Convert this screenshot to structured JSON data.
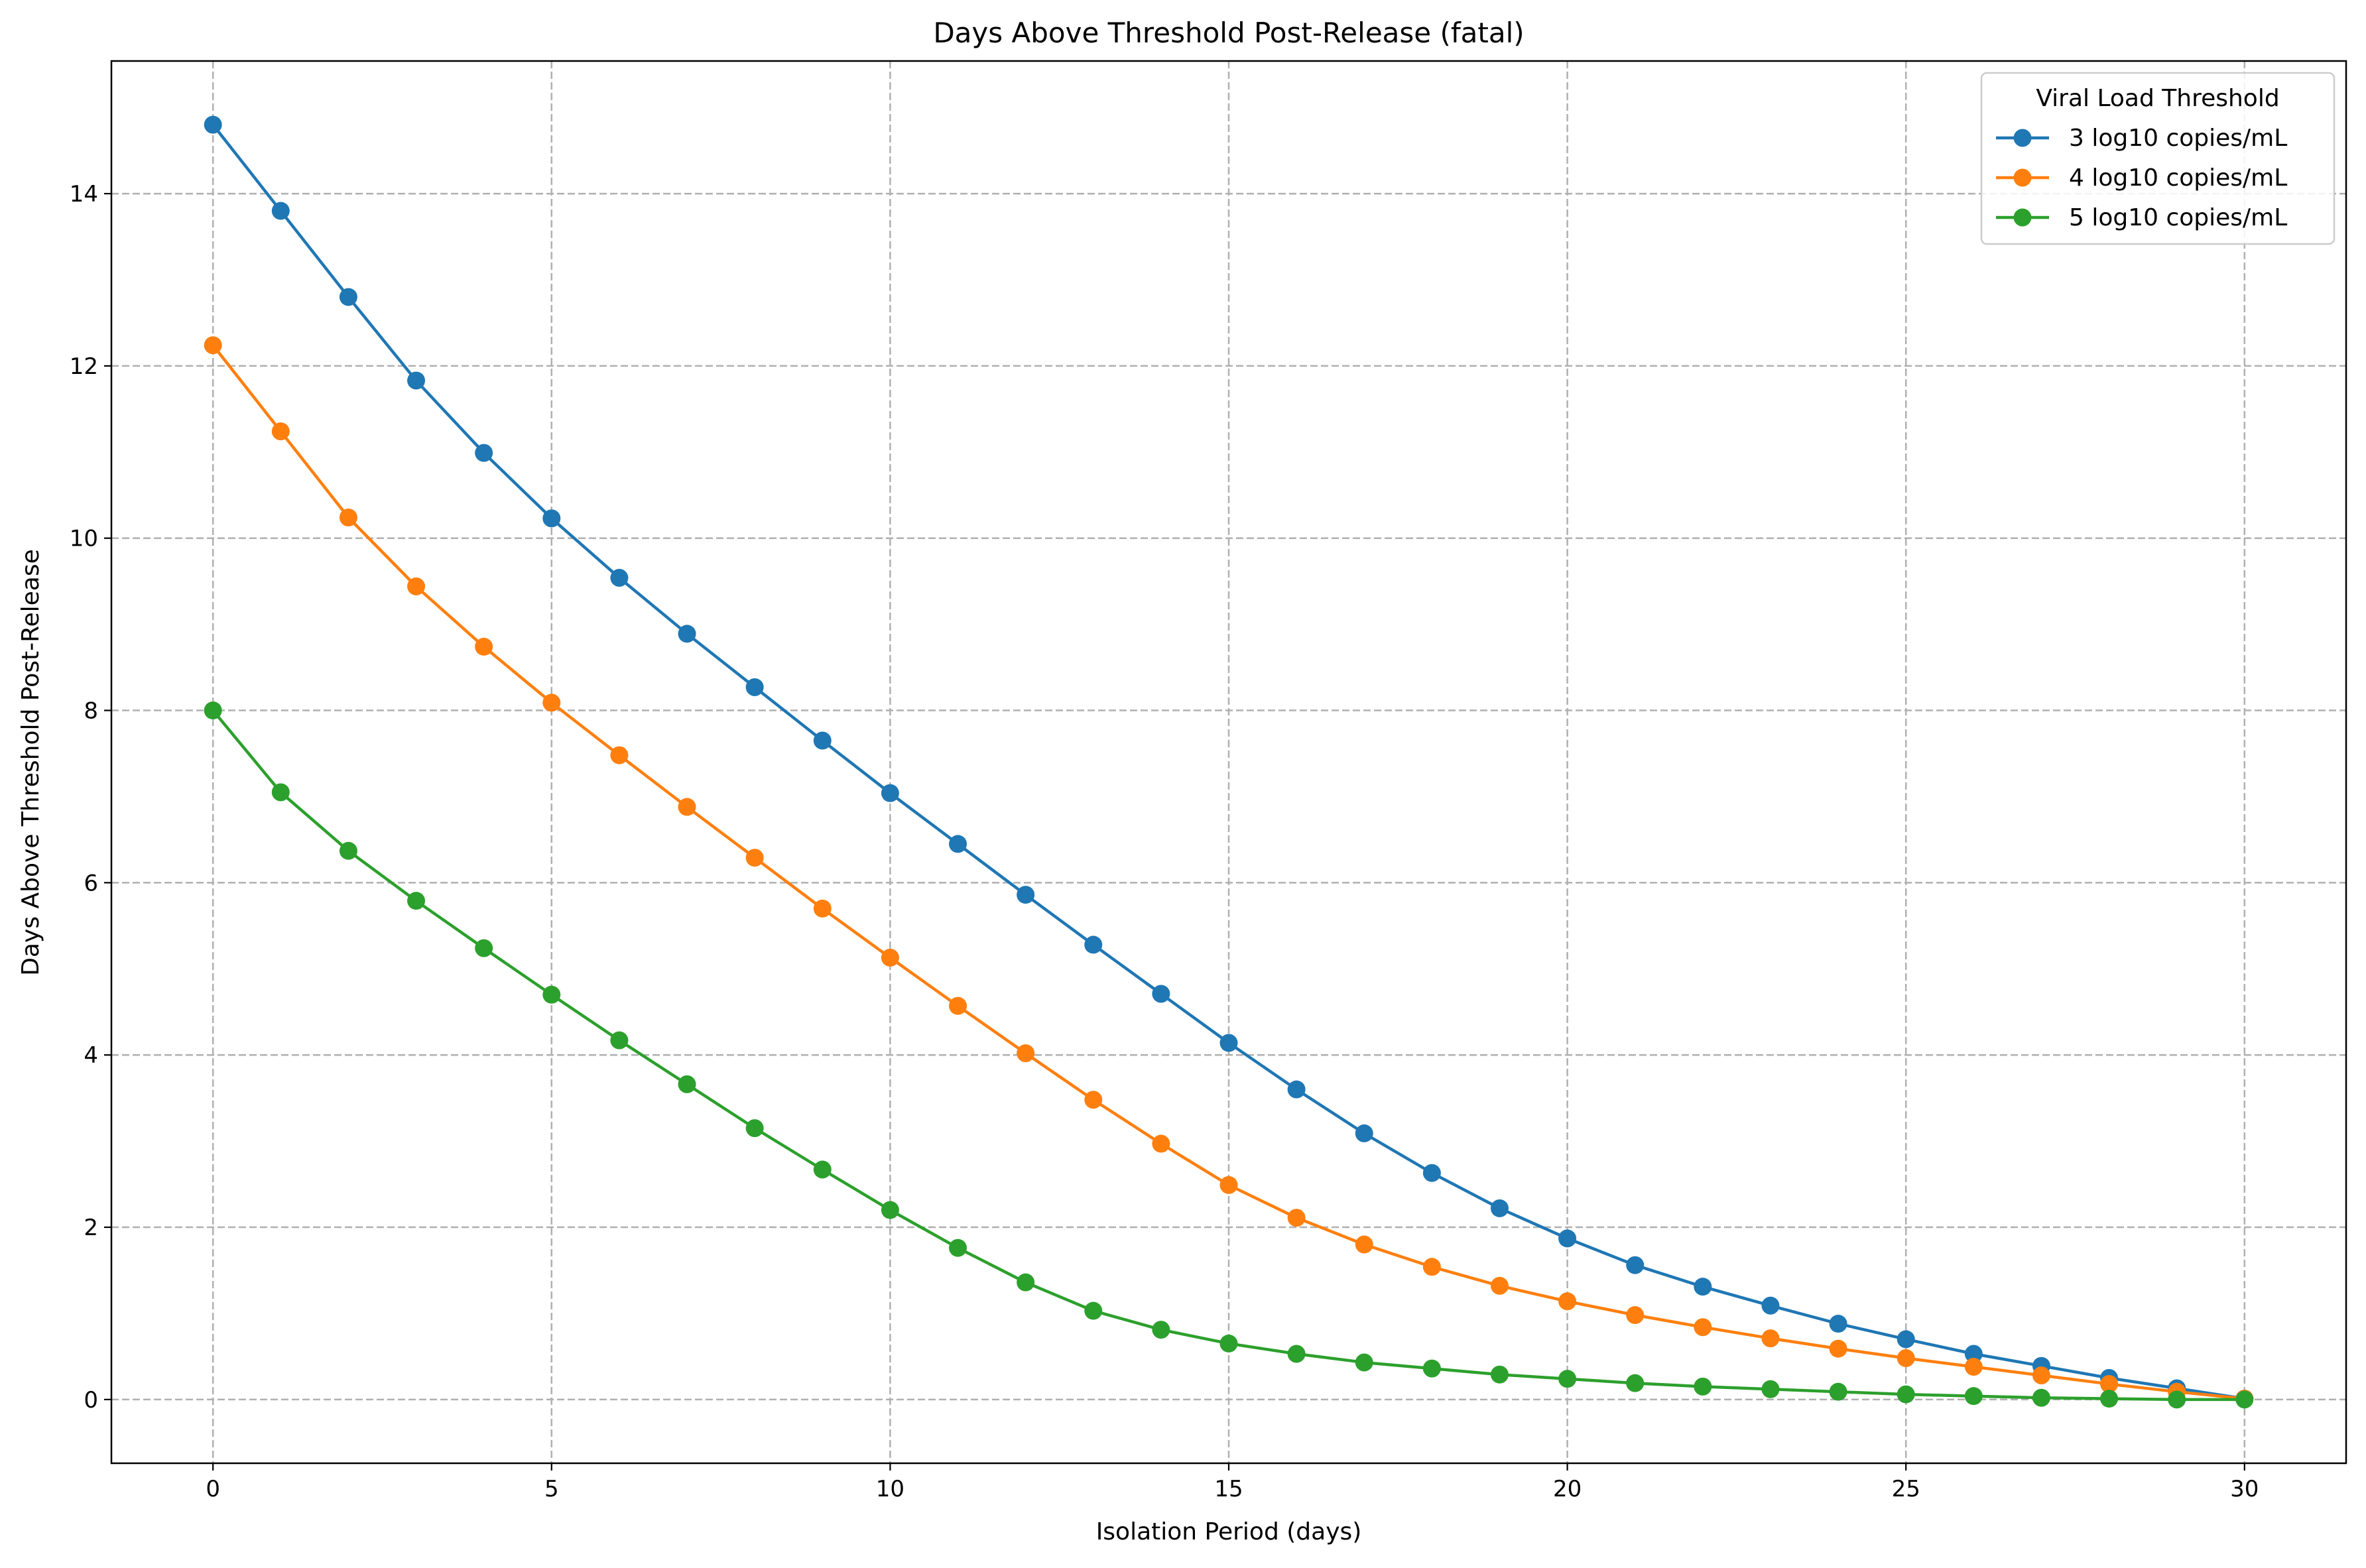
{
  "chart_data": {
    "type": "line",
    "title": "Days Above Threshold Post-Release (fatal)",
    "xlabel": "Isolation Period (days)",
    "ylabel": "Days Above Threshold Post-Release",
    "xlim": [
      -1.5,
      31.5
    ],
    "ylim": [
      -0.74,
      15.54
    ],
    "xticks": [
      0,
      5,
      10,
      15,
      20,
      25,
      30
    ],
    "yticks": [
      0,
      2,
      4,
      6,
      8,
      10,
      12,
      14
    ],
    "grid": true,
    "legend": {
      "title": "Viral Load Threshold",
      "position": "top-right"
    },
    "x": [
      0,
      1,
      2,
      3,
      4,
      5,
      6,
      7,
      8,
      9,
      10,
      11,
      12,
      13,
      14,
      15,
      16,
      17,
      18,
      19,
      20,
      21,
      22,
      23,
      24,
      25,
      26,
      27,
      28,
      29,
      30
    ],
    "series": [
      {
        "name": "3 log10 copies/mL",
        "color": "#1f77b4",
        "values": [
          14.8,
          13.8,
          12.8,
          11.83,
          10.99,
          10.23,
          9.54,
          8.89,
          8.27,
          7.65,
          7.04,
          6.45,
          5.86,
          5.28,
          4.71,
          4.14,
          3.6,
          3.09,
          2.63,
          2.22,
          1.87,
          1.56,
          1.31,
          1.09,
          0.88,
          0.7,
          0.53,
          0.39,
          0.25,
          0.13,
          0.01
        ]
      },
      {
        "name": "4 log10 copies/mL",
        "color": "#ff7f0e",
        "values": [
          12.24,
          11.24,
          10.24,
          9.44,
          8.74,
          8.09,
          7.48,
          6.88,
          6.29,
          5.7,
          5.13,
          4.57,
          4.02,
          3.48,
          2.97,
          2.49,
          2.11,
          1.8,
          1.54,
          1.32,
          1.14,
          0.98,
          0.84,
          0.71,
          0.59,
          0.48,
          0.38,
          0.28,
          0.18,
          0.09,
          0.01
        ]
      },
      {
        "name": "5 log10 copies/mL",
        "color": "#2ca02c",
        "values": [
          8.0,
          7.05,
          6.37,
          5.79,
          5.24,
          4.7,
          4.17,
          3.66,
          3.15,
          2.67,
          2.2,
          1.76,
          1.36,
          1.03,
          0.81,
          0.65,
          0.53,
          0.43,
          0.36,
          0.29,
          0.24,
          0.19,
          0.15,
          0.12,
          0.09,
          0.06,
          0.04,
          0.02,
          0.01,
          0.0,
          0.0
        ]
      }
    ]
  }
}
